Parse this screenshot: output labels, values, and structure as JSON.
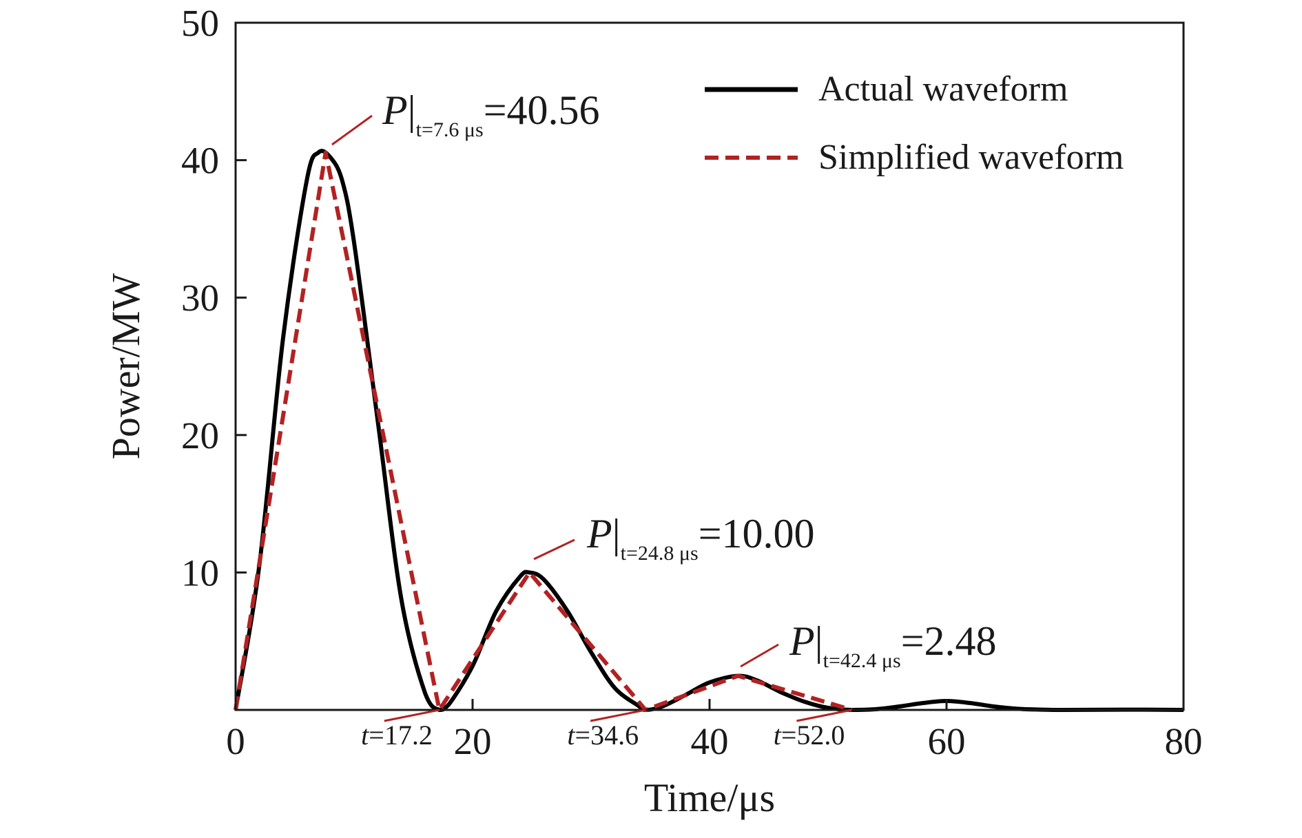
{
  "chart_data": {
    "type": "line",
    "xlabel": "Time/μs",
    "ylabel": "Power/MW",
    "xlim": [
      0,
      80
    ],
    "ylim": [
      0,
      50
    ],
    "x_ticks": [
      0,
      20,
      40,
      60,
      80
    ],
    "y_ticks": [
      10,
      20,
      30,
      40,
      50
    ],
    "x_tick_labels": [
      "0",
      "20",
      "40",
      "60",
      "80"
    ],
    "y_tick_labels": [
      "10",
      "20",
      "30",
      "40",
      "50"
    ],
    "grid": false,
    "legend": "top-right",
    "series": [
      {
        "name": "Actual waveform",
        "color": "#000000",
        "style": "solid",
        "x": [
          0,
          2,
          4,
          6,
          7,
          8,
          9,
          10,
          12,
          14,
          16,
          17.2,
          18,
          20,
          22,
          24,
          24.8,
          26,
          28,
          30,
          32,
          34,
          34.6,
          36,
          38,
          40,
          42.4,
          44,
          46,
          48,
          50,
          52,
          54,
          56,
          58,
          60,
          62,
          64,
          66,
          68,
          70,
          75,
          80
        ],
        "y": [
          0,
          10.5,
          27,
          38.5,
          40.56,
          40.2,
          38.5,
          34,
          21,
          8,
          1.2,
          0,
          0.4,
          3.2,
          7.2,
          9.7,
          10.0,
          9.5,
          7.2,
          4.2,
          1.6,
          0.3,
          0,
          0.25,
          1.1,
          2.0,
          2.48,
          2.15,
          1.3,
          0.6,
          0.15,
          0,
          0.05,
          0.25,
          0.5,
          0.65,
          0.5,
          0.25,
          0.08,
          0.02,
          0,
          0.02,
          0
        ]
      },
      {
        "name": "Simplified waveform",
        "color": "#b22222",
        "style": "dashed",
        "x": [
          0,
          7.6,
          17.2,
          24.8,
          34.6,
          42.4,
          52.0
        ],
        "y": [
          0,
          40.56,
          0,
          10.0,
          0,
          2.48,
          0
        ]
      }
    ],
    "annotations": [
      {
        "prefix": "P|",
        "subscript": "t=7.6 μs",
        "value_text": "=40.56",
        "x": 7.6,
        "y": 40.56
      },
      {
        "prefix": "P|",
        "subscript": "t=24.8 μs",
        "value_text": "=10.00",
        "x": 24.8,
        "y": 10.0
      },
      {
        "prefix": "P|",
        "subscript": "t=42.4 μs",
        "value_text": "=2.48",
        "x": 42.4,
        "y": 2.48
      }
    ],
    "zero_crossings": [
      {
        "label": "t=17.2",
        "x": 17.2
      },
      {
        "label": "t=34.6",
        "x": 34.6
      },
      {
        "label": "t=52.0",
        "x": 52.0
      }
    ]
  }
}
